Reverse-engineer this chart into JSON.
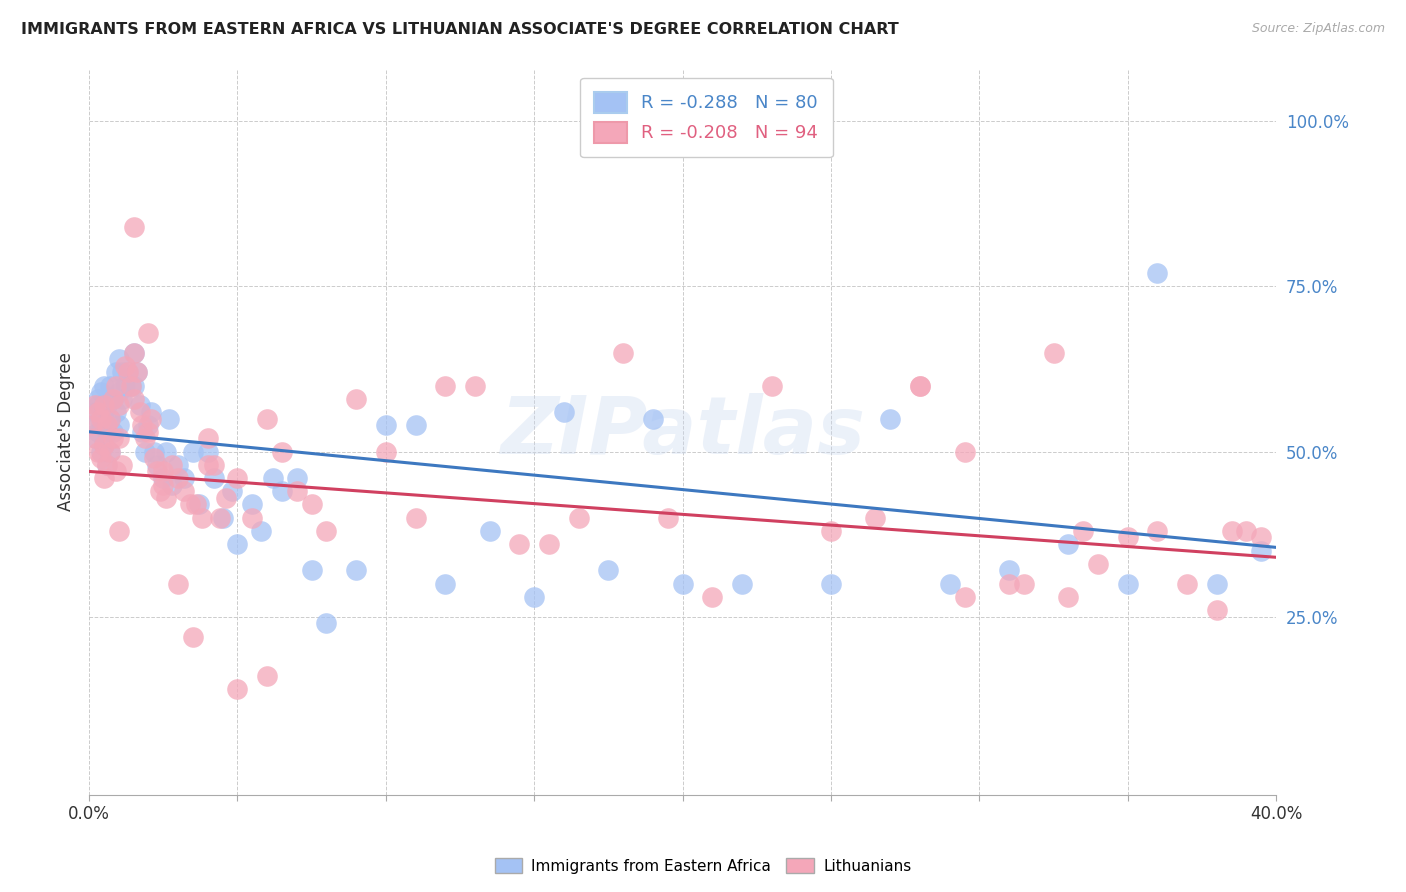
{
  "title": "IMMIGRANTS FROM EASTERN AFRICA VS LITHUANIAN ASSOCIATE'S DEGREE CORRELATION CHART",
  "source": "Source: ZipAtlas.com",
  "ylabel": "Associate's Degree",
  "ytick_labels": [
    "25.0%",
    "50.0%",
    "75.0%",
    "100.0%"
  ],
  "ytick_values": [
    0.25,
    0.5,
    0.75,
    1.0
  ],
  "xlim": [
    0.0,
    0.4
  ],
  "ylim": [
    -0.02,
    1.08
  ],
  "legend_entries": [
    {
      "label": "R = -0.288   N = 80",
      "color": "#4a86c8"
    },
    {
      "label": "R = -0.208   N = 94",
      "color": "#e06080"
    }
  ],
  "series1_color": "#a4c2f4",
  "series2_color": "#f4a7b9",
  "trendline1_color": "#3d78c0",
  "trendline2_color": "#d04060",
  "background_color": "#ffffff",
  "watermark": "ZIPatlas",
  "trendline1_y0": 0.53,
  "trendline1_y1": 0.355,
  "trendline2_y0": 0.47,
  "trendline2_y1": 0.34,
  "series1_x": [
    0.001,
    0.002,
    0.002,
    0.003,
    0.003,
    0.003,
    0.004,
    0.004,
    0.004,
    0.005,
    0.005,
    0.005,
    0.006,
    0.006,
    0.006,
    0.007,
    0.007,
    0.007,
    0.008,
    0.008,
    0.009,
    0.009,
    0.01,
    0.01,
    0.01,
    0.011,
    0.011,
    0.012,
    0.013,
    0.014,
    0.015,
    0.015,
    0.016,
    0.017,
    0.018,
    0.019,
    0.02,
    0.021,
    0.022,
    0.023,
    0.025,
    0.026,
    0.027,
    0.028,
    0.03,
    0.032,
    0.035,
    0.037,
    0.04,
    0.042,
    0.045,
    0.048,
    0.05,
    0.055,
    0.058,
    0.062,
    0.065,
    0.07,
    0.075,
    0.08,
    0.09,
    0.1,
    0.11,
    0.12,
    0.135,
    0.15,
    0.16,
    0.175,
    0.19,
    0.2,
    0.22,
    0.25,
    0.27,
    0.29,
    0.31,
    0.33,
    0.35,
    0.36,
    0.38,
    0.395
  ],
  "series1_y": [
    0.54,
    0.56,
    0.52,
    0.57,
    0.53,
    0.58,
    0.59,
    0.54,
    0.5,
    0.6,
    0.55,
    0.51,
    0.57,
    0.53,
    0.48,
    0.6,
    0.55,
    0.5,
    0.58,
    0.53,
    0.62,
    0.56,
    0.64,
    0.59,
    0.54,
    0.62,
    0.58,
    0.6,
    0.62,
    0.6,
    0.65,
    0.6,
    0.62,
    0.57,
    0.53,
    0.5,
    0.54,
    0.56,
    0.5,
    0.48,
    0.46,
    0.5,
    0.55,
    0.45,
    0.48,
    0.46,
    0.5,
    0.42,
    0.5,
    0.46,
    0.4,
    0.44,
    0.36,
    0.42,
    0.38,
    0.46,
    0.44,
    0.46,
    0.32,
    0.24,
    0.32,
    0.54,
    0.54,
    0.3,
    0.38,
    0.28,
    0.56,
    0.32,
    0.55,
    0.3,
    0.3,
    0.3,
    0.55,
    0.3,
    0.32,
    0.36,
    0.3,
    0.77,
    0.3,
    0.35
  ],
  "series2_x": [
    0.001,
    0.002,
    0.002,
    0.003,
    0.003,
    0.004,
    0.004,
    0.005,
    0.005,
    0.006,
    0.006,
    0.007,
    0.007,
    0.008,
    0.008,
    0.009,
    0.009,
    0.01,
    0.01,
    0.011,
    0.012,
    0.013,
    0.014,
    0.015,
    0.015,
    0.016,
    0.017,
    0.018,
    0.019,
    0.02,
    0.021,
    0.022,
    0.023,
    0.024,
    0.025,
    0.026,
    0.028,
    0.03,
    0.032,
    0.034,
    0.036,
    0.038,
    0.04,
    0.042,
    0.044,
    0.046,
    0.05,
    0.055,
    0.06,
    0.065,
    0.07,
    0.075,
    0.08,
    0.09,
    0.1,
    0.11,
    0.12,
    0.13,
    0.145,
    0.155,
    0.165,
    0.18,
    0.195,
    0.21,
    0.23,
    0.25,
    0.265,
    0.28,
    0.295,
    0.31,
    0.325,
    0.335,
    0.35,
    0.36,
    0.37,
    0.38,
    0.385,
    0.39,
    0.005,
    0.01,
    0.015,
    0.02,
    0.025,
    0.03,
    0.035,
    0.04,
    0.315,
    0.33,
    0.28,
    0.295,
    0.05,
    0.06,
    0.34,
    0.395
  ],
  "series2_y": [
    0.54,
    0.52,
    0.57,
    0.56,
    0.5,
    0.55,
    0.49,
    0.57,
    0.51,
    0.54,
    0.48,
    0.55,
    0.5,
    0.58,
    0.52,
    0.6,
    0.47,
    0.57,
    0.52,
    0.48,
    0.63,
    0.62,
    0.6,
    0.65,
    0.58,
    0.62,
    0.56,
    0.54,
    0.52,
    0.53,
    0.55,
    0.49,
    0.47,
    0.44,
    0.45,
    0.43,
    0.48,
    0.46,
    0.44,
    0.42,
    0.42,
    0.4,
    0.48,
    0.48,
    0.4,
    0.43,
    0.46,
    0.4,
    0.55,
    0.5,
    0.44,
    0.42,
    0.38,
    0.58,
    0.5,
    0.4,
    0.6,
    0.6,
    0.36,
    0.36,
    0.4,
    0.65,
    0.4,
    0.28,
    0.6,
    0.38,
    0.4,
    0.6,
    0.28,
    0.3,
    0.65,
    0.38,
    0.37,
    0.38,
    0.3,
    0.26,
    0.38,
    0.38,
    0.46,
    0.38,
    0.84,
    0.68,
    0.47,
    0.3,
    0.22,
    0.52,
    0.3,
    0.28,
    0.6,
    0.5,
    0.14,
    0.16,
    0.33,
    0.37
  ]
}
